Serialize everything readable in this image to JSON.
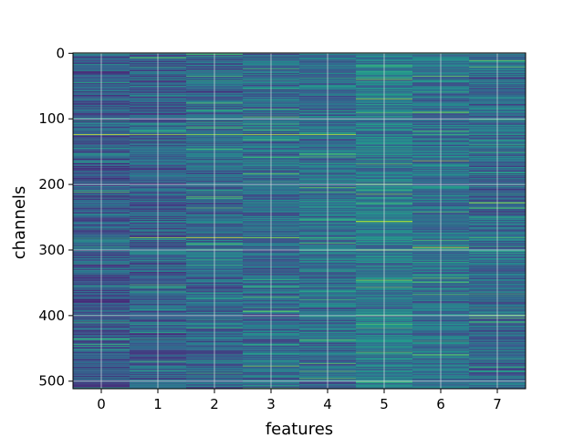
{
  "chart_data": {
    "type": "heatmap",
    "title": "",
    "xlabel": "features",
    "ylabel": "channels",
    "x_categories": [
      0,
      1,
      2,
      3,
      4,
      5,
      6,
      7
    ],
    "x_ticks": [
      "0",
      "1",
      "2",
      "3",
      "4",
      "5",
      "6",
      "7"
    ],
    "y_ticks": [
      "0",
      "100",
      "200",
      "300",
      "400",
      "500"
    ],
    "y_tick_values": [
      0,
      100,
      200,
      300,
      400,
      500
    ],
    "xlim": [
      -0.5,
      7.5
    ],
    "ylim": [
      511.5,
      -0.5
    ],
    "rows": 512,
    "colormap": "viridis",
    "grid": true,
    "feature_mean_intensity": [
      0.28,
      0.3,
      0.32,
      0.34,
      0.36,
      0.4,
      0.37,
      0.33
    ],
    "bright_channel_rows": [
      124,
      281,
      300,
      400
    ],
    "hot_cells": [
      {
        "feature": 0,
        "channel": 124,
        "value": 0.95
      },
      {
        "feature": 1,
        "channel": 124,
        "value": 0.85
      },
      {
        "feature": 2,
        "channel": 124,
        "value": 0.85
      },
      {
        "feature": 3,
        "channel": 124,
        "value": 0.9
      },
      {
        "feature": 4,
        "channel": 124,
        "value": 0.9
      },
      {
        "feature": 1,
        "channel": 281,
        "value": 0.85
      },
      {
        "feature": 2,
        "channel": 281,
        "value": 0.95
      },
      {
        "feature": 3,
        "channel": 281,
        "value": 0.85
      },
      {
        "feature": 4,
        "channel": 290,
        "value": 0.75
      },
      {
        "feature": 5,
        "channel": 70,
        "value": 0.85
      },
      {
        "feature": 5,
        "channel": 200,
        "value": 0.9
      },
      {
        "feature": 5,
        "channel": 300,
        "value": 0.9
      },
      {
        "feature": 6,
        "channel": 90,
        "value": 0.85
      },
      {
        "feature": 6,
        "channel": 296,
        "value": 0.95
      },
      {
        "feature": 6,
        "channel": 460,
        "value": 0.8
      },
      {
        "feature": 7,
        "channel": 228,
        "value": 0.9
      },
      {
        "feature": 7,
        "channel": 400,
        "value": 0.85
      }
    ],
    "colors": {
      "background": "#ffffff",
      "grid": "#e6e6e6",
      "axis": "#000000"
    }
  }
}
